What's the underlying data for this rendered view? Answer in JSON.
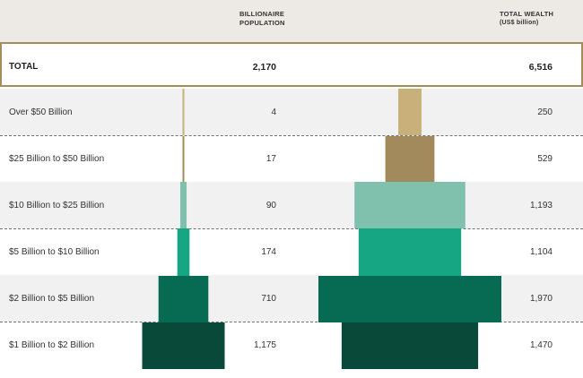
{
  "header": {
    "population_title": "BILLIONAIRE",
    "population_title_2": "POPULATION",
    "wealth_title": "TOTAL WEALTH",
    "wealth_subtitle": "(US$ billion)"
  },
  "total": {
    "label": "TOTAL",
    "population": "2,170",
    "wealth": "6,516"
  },
  "rows": [
    {
      "label": "Over $50 Billion",
      "population": "4",
      "wealth": "250"
    },
    {
      "label": "$25 Billion to $50 Billion",
      "population": "17",
      "wealth": "529"
    },
    {
      "label": "$10 Billion to $25 Billion",
      "population": "90",
      "wealth": "1,193"
    },
    {
      "label": "$5 Billion to $10 Billion",
      "population": "174",
      "wealth": "1,104"
    },
    {
      "label": "$2 Billion to $5 Billion",
      "population": "710",
      "wealth": "1,970"
    },
    {
      "label": "$1 Billion to $2 Billion",
      "population": "1,175",
      "wealth": "1,470"
    }
  ],
  "chart_data": {
    "type": "bar",
    "categories": [
      "Over $50 Billion",
      "$25 Billion to $50 Billion",
      "$10 Billion to $25 Billion",
      "$5 Billion to $10 Billion",
      "$2 Billion to $5 Billion",
      "$1 Billion to $2 Billion"
    ],
    "series": [
      {
        "name": "BILLIONAIRE POPULATION",
        "values": [
          4,
          17,
          90,
          174,
          710,
          1175
        ]
      },
      {
        "name": "TOTAL WEALTH (US$ billion)",
        "values": [
          250,
          529,
          1193,
          1104,
          1970,
          1470
        ]
      }
    ],
    "totals": {
      "population": 2170,
      "wealth": 6516
    },
    "colors": [
      "#c7b07a",
      "#a28a5c",
      "#80c1ad",
      "#16a683",
      "#076a52",
      "#08493a"
    ],
    "title": "",
    "xlabel": "",
    "ylabel": ""
  }
}
